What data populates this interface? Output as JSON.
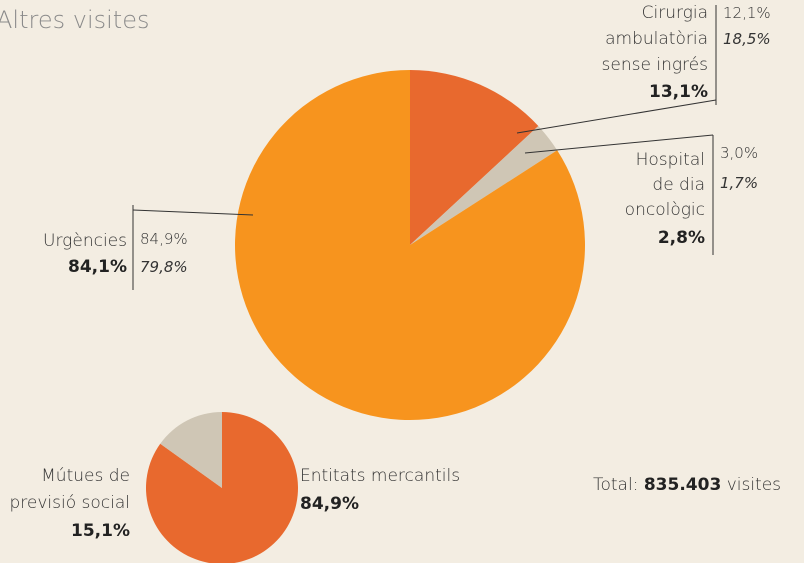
{
  "chart_data": [
    {
      "type": "pie",
      "title": "Altres visites",
      "categories": [
        [
          "Cirurgia",
          "ambulatòria",
          "sense ingrés"
        ],
        [
          "Hospital",
          "de dia",
          "oncològic"
        ],
        [
          "Urgències"
        ]
      ],
      "values": [
        13.1,
        2.8,
        84.1
      ],
      "value_labels": [
        "13,1%",
        "2,8%",
        "84,1%"
      ],
      "values_2": [
        12.1,
        3.0,
        84.9
      ],
      "value_labels_2": [
        "12,1%",
        "3,0%",
        "84,9%"
      ],
      "values_3": [
        18.5,
        1.7,
        79.8
      ],
      "value_labels_3": [
        "18,5%",
        "1,7%",
        "79,8%"
      ],
      "colors": [
        "#e8692e",
        "#cfc6b5",
        "#f7941e"
      ]
    },
    {
      "type": "pie",
      "categories": [
        [
          "Entitats mercantils"
        ],
        [
          "Mútues de",
          "previsió social"
        ]
      ],
      "values": [
        84.9,
        15.1
      ],
      "value_labels": [
        "84,9%",
        "15,1%"
      ],
      "colors": [
        "#e8692e",
        "#cfc6b5"
      ]
    }
  ],
  "total": {
    "prefix": "Total:",
    "value": 835403,
    "value_label": "835.403",
    "suffix": "visites"
  }
}
